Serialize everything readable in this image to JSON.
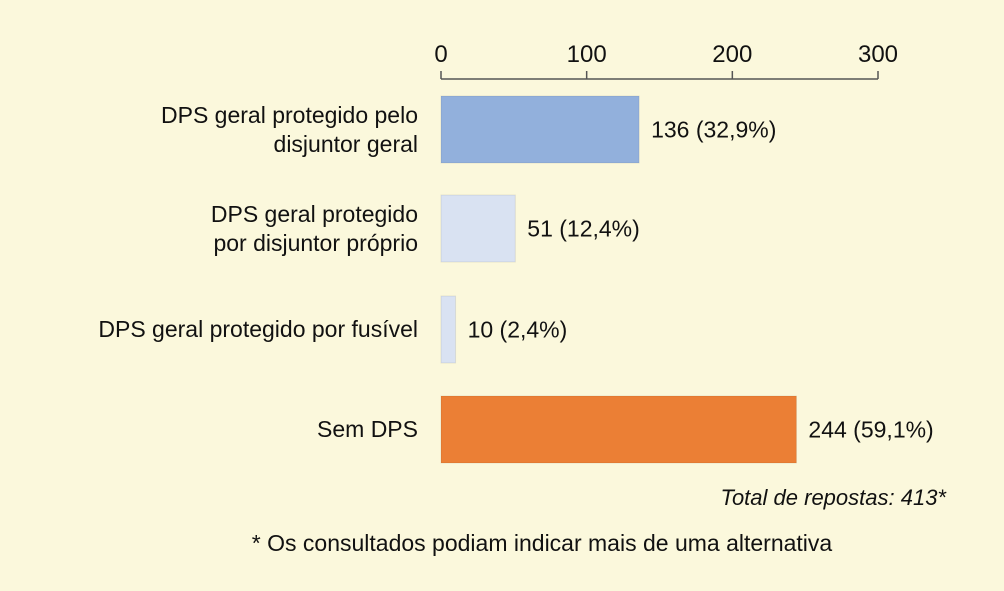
{
  "chart_data": {
    "type": "bar",
    "orientation": "horizontal",
    "categories": [
      "DPS geral protegido pelo\ndisjuntor geral",
      "DPS geral protegido\npor disjuntor próprio",
      "DPS geral protegido por fusível",
      "Sem DPS"
    ],
    "values": [
      136,
      51,
      10,
      244
    ],
    "data_labels": [
      "136 (32,9%)",
      "51 (12,4%)",
      "10 (2,4%)",
      "244 (59,1%)"
    ],
    "colors": [
      "#92b0dc",
      "#d9e2f2",
      "#d9e2f2",
      "#eb7f35"
    ],
    "xlim": [
      0,
      300
    ],
    "xticks": [
      0,
      100,
      200,
      300
    ],
    "axis_position": "top",
    "grid": false
  },
  "footer": {
    "total": "Total de repostas: 413*",
    "note": "* Os consultados podiam indicar mais de uma alternativa"
  }
}
